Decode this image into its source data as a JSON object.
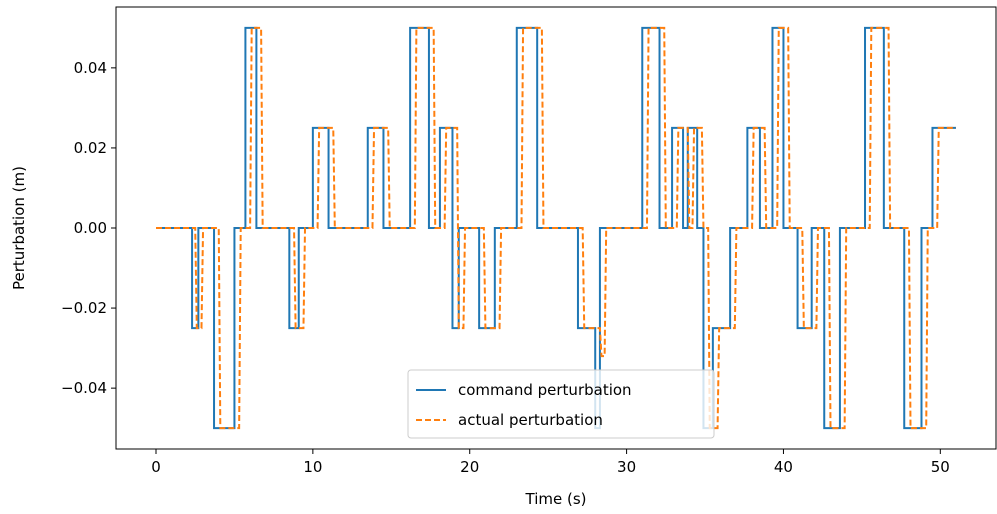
{
  "chart_data": {
    "type": "line",
    "xlabel": "Time (s)",
    "ylabel": "Perturbation (m)",
    "xlim": [
      -2.55,
      53.55
    ],
    "ylim": [
      -0.0552,
      0.0552
    ],
    "xticks": [
      0,
      10,
      20,
      30,
      40,
      50
    ],
    "xtick_labels": [
      "0",
      "10",
      "20",
      "30",
      "40",
      "50"
    ],
    "yticks": [
      -0.04,
      -0.02,
      0.0,
      0.02,
      0.04
    ],
    "ytick_labels": [
      "−0.04",
      "−0.02",
      "0.00",
      "0.02",
      "0.04"
    ],
    "grid": false,
    "legend_position": "lower center",
    "series": [
      {
        "name": "command perturbation",
        "color": "#1f77b4",
        "style": "solid",
        "x": [
          0,
          2.3,
          2.3,
          2.7,
          2.7,
          3.7,
          3.7,
          5.0,
          5.0,
          5.7,
          5.7,
          6.4,
          6.4,
          8.5,
          8.5,
          9.1,
          9.1,
          10.0,
          10.0,
          11.0,
          11.0,
          13.5,
          13.5,
          14.5,
          14.5,
          16.2,
          16.2,
          17.4,
          17.4,
          18.1,
          18.1,
          18.9,
          18.9,
          19.3,
          19.3,
          20.6,
          20.6,
          21.6,
          21.6,
          23.0,
          23.0,
          24.3,
          24.3,
          26.9,
          26.9,
          28.0,
          28.0,
          28.3,
          28.3,
          31.0,
          31.0,
          32.1,
          32.1,
          32.9,
          32.9,
          33.6,
          33.6,
          33.9,
          33.9,
          34.5,
          34.5,
          34.9,
          34.9,
          35.5,
          35.5,
          36.6,
          36.6,
          37.7,
          37.7,
          38.5,
          38.5,
          39.3,
          39.3,
          40.0,
          40.0,
          40.9,
          40.9,
          41.8,
          41.8,
          42.6,
          42.6,
          43.6,
          43.6,
          45.2,
          45.2,
          46.4,
          46.4,
          47.7,
          47.7,
          48.8,
          48.8,
          49.5,
          49.5,
          51.0
        ],
        "y": [
          0,
          0,
          -0.025,
          -0.025,
          0,
          0,
          -0.05,
          -0.05,
          0,
          0,
          0.05,
          0.05,
          0,
          0,
          -0.025,
          -0.025,
          0,
          0,
          0.025,
          0.025,
          0,
          0,
          0.025,
          0.025,
          0,
          0,
          0.05,
          0.05,
          0,
          0,
          0.025,
          0.025,
          -0.025,
          -0.025,
          0,
          0,
          -0.025,
          -0.025,
          0,
          0,
          0.05,
          0.05,
          0,
          0,
          -0.025,
          -0.025,
          -0.05,
          -0.05,
          0,
          0,
          0.05,
          0.05,
          0,
          0,
          0.025,
          0.025,
          0,
          0,
          0.025,
          0.025,
          0,
          0,
          -0.05,
          -0.05,
          -0.025,
          -0.025,
          0,
          0,
          0.025,
          0.025,
          0,
          0,
          0.05,
          0.05,
          0,
          0,
          -0.025,
          -0.025,
          0,
          0,
          -0.05,
          -0.05,
          0,
          0,
          0.05,
          0.05,
          0,
          0,
          -0.05,
          -0.05,
          0,
          0,
          0.025,
          0.025
        ]
      },
      {
        "name": "actual perturbation",
        "color": "#ff7f0e",
        "style": "dashed",
        "x": [
          0,
          2.5,
          2.6,
          2.9,
          3.0,
          4.0,
          4.1,
          5.3,
          5.4,
          6.0,
          6.1,
          6.7,
          6.8,
          8.8,
          8.9,
          9.4,
          9.5,
          10.3,
          10.4,
          11.3,
          11.4,
          13.8,
          13.9,
          14.8,
          14.9,
          16.5,
          16.6,
          17.7,
          17.8,
          18.4,
          18.5,
          19.2,
          19.3,
          19.6,
          19.7,
          20.9,
          21.0,
          21.9,
          22.0,
          23.3,
          23.4,
          24.6,
          24.7,
          27.2,
          27.3,
          28.3,
          28.4,
          28.6,
          28.7,
          31.3,
          31.4,
          32.4,
          32.5,
          33.2,
          33.3,
          33.9,
          34.0,
          34.2,
          34.3,
          34.8,
          34.9,
          35.2,
          35.3,
          35.8,
          35.9,
          36.9,
          37.0,
          38.0,
          38.1,
          38.8,
          38.9,
          39.6,
          39.7,
          40.3,
          40.4,
          41.2,
          41.3,
          42.1,
          42.2,
          42.9,
          43.0,
          43.9,
          44.0,
          45.5,
          45.6,
          46.7,
          46.8,
          48.0,
          48.1,
          49.1,
          49.2,
          49.8,
          49.9,
          51.0
        ],
        "y": [
          0,
          0,
          -0.025,
          -0.025,
          0,
          0,
          -0.05,
          -0.05,
          0,
          0,
          0.05,
          0.05,
          0,
          0,
          -0.025,
          -0.025,
          0,
          0,
          0.025,
          0.025,
          0,
          0,
          0.025,
          0.025,
          0,
          0,
          0.05,
          0.05,
          0,
          0,
          0.025,
          0.025,
          -0.025,
          -0.025,
          0,
          0,
          -0.025,
          -0.025,
          0,
          0,
          0.05,
          0.05,
          0,
          0,
          -0.025,
          -0.025,
          -0.032,
          -0.032,
          0,
          0,
          0.05,
          0.05,
          0,
          0,
          0.025,
          0.025,
          0,
          0,
          0.025,
          0.025,
          0,
          0,
          -0.05,
          -0.05,
          -0.025,
          -0.025,
          0,
          0,
          0.025,
          0.025,
          0,
          0,
          0.05,
          0.05,
          0,
          0,
          -0.025,
          -0.025,
          0,
          0,
          -0.05,
          -0.05,
          0,
          0,
          0.05,
          0.05,
          0,
          0,
          -0.05,
          -0.05,
          0,
          0,
          0.025,
          0.025
        ]
      }
    ]
  }
}
